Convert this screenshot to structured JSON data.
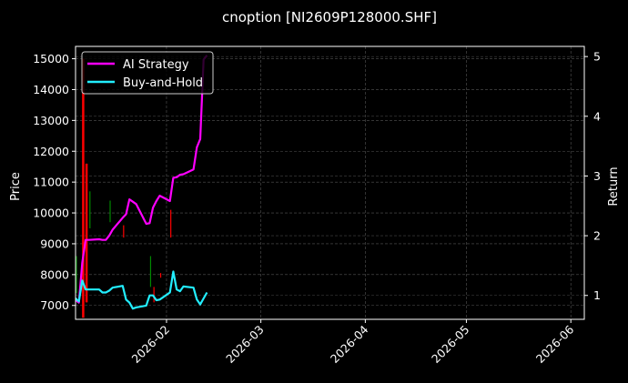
{
  "chart_data": {
    "type": "line",
    "title": "cnoption [NI2609P128000.SHF]",
    "xlabel": "",
    "ylabel": "Price",
    "y2label": "Return",
    "x_ticks": [
      "2026-02",
      "2026-03",
      "2026-04",
      "2026-05",
      "2026-06"
    ],
    "y_ticks": [
      7000,
      8000,
      9000,
      10000,
      11000,
      12000,
      13000,
      14000,
      15000
    ],
    "y2_ticks": [
      1,
      2,
      3,
      4,
      5
    ],
    "ylim": [
      6550,
      15400
    ],
    "y2lim": [
      0.6,
      5.17
    ],
    "xlim": [
      "2026-01-05",
      "2026-06-05"
    ],
    "grid": true,
    "legend_position": "upper left",
    "legend": [
      {
        "name": "AI Strategy",
        "color": "#ff00ff"
      },
      {
        "name": "Buy-and-Hold",
        "color": "#22eeff"
      }
    ],
    "series": [
      {
        "name": "AI Strategy",
        "axis": "return",
        "color": "#ff00ff",
        "x": [
          "2026-01-05",
          "2026-01-06",
          "2026-01-07",
          "2026-01-08",
          "2026-01-09",
          "2026-01-12",
          "2026-01-13",
          "2026-01-14",
          "2026-01-15",
          "2026-01-16",
          "2026-01-19",
          "2026-01-20",
          "2026-01-21",
          "2026-01-22",
          "2026-01-23",
          "2026-01-26",
          "2026-01-27",
          "2026-01-28",
          "2026-01-29",
          "2026-01-30",
          "2026-02-02",
          "2026-02-03",
          "2026-02-04",
          "2026-02-05",
          "2026-02-06",
          "2026-02-09",
          "2026-02-10",
          "2026-02-11",
          "2026-02-12",
          "2026-02-13"
        ],
        "values": [
          0.92,
          0.88,
          1.55,
          1.93,
          1.93,
          1.94,
          1.93,
          1.93,
          2.0,
          2.1,
          2.3,
          2.36,
          2.61,
          2.57,
          2.53,
          2.2,
          2.21,
          2.47,
          2.58,
          2.67,
          2.58,
          2.97,
          2.98,
          3.02,
          3.03,
          3.11,
          3.48,
          3.62,
          4.95,
          5.02
        ]
      },
      {
        "name": "Buy-and-Hold",
        "axis": "return",
        "color": "#22eeff",
        "x": [
          "2026-01-05",
          "2026-01-06",
          "2026-01-07",
          "2026-01-08",
          "2026-01-09",
          "2026-01-12",
          "2026-01-13",
          "2026-01-14",
          "2026-01-15",
          "2026-01-16",
          "2026-01-19",
          "2026-01-20",
          "2026-01-21",
          "2026-01-22",
          "2026-01-23",
          "2026-01-26",
          "2026-01-27",
          "2026-01-28",
          "2026-01-29",
          "2026-01-30",
          "2026-02-02",
          "2026-02-03",
          "2026-02-04",
          "2026-02-05",
          "2026-02-06",
          "2026-02-09",
          "2026-02-10",
          "2026-02-11",
          "2026-02-12",
          "2026-02-13"
        ],
        "values": [
          0.95,
          0.9,
          1.25,
          1.1,
          1.1,
          1.1,
          1.05,
          1.05,
          1.08,
          1.13,
          1.16,
          0.93,
          0.88,
          0.78,
          0.8,
          0.83,
          1.0,
          1.0,
          0.92,
          0.93,
          1.05,
          1.4,
          1.1,
          1.07,
          1.15,
          1.13,
          0.93,
          0.85,
          0.95,
          1.05
        ]
      }
    ],
    "price_ohlc_marks": [
      {
        "date": "2026-01-05",
        "low": 7400,
        "high": 8600,
        "color": "#008800"
      },
      {
        "date": "2026-01-07",
        "low": 6600,
        "high": 15000,
        "color": "#ff0000"
      },
      {
        "date": "2026-01-08",
        "low": 7100,
        "high": 11600,
        "color": "#ff0000"
      },
      {
        "date": "2026-01-09",
        "low": 9500,
        "high": 10700,
        "color": "#008800"
      },
      {
        "date": "2026-01-15",
        "low": 9700,
        "high": 10400,
        "color": "#008800"
      },
      {
        "date": "2026-01-19",
        "low": 9200,
        "high": 9600,
        "color": "#ff0000"
      },
      {
        "date": "2026-01-27",
        "low": 7600,
        "high": 8600,
        "color": "#008800"
      },
      {
        "date": "2026-01-28",
        "low": 7100,
        "high": 7600,
        "color": "#ff0000"
      },
      {
        "date": "2026-02-02",
        "low": 9200,
        "high": 10100,
        "color": "#ff0000"
      },
      {
        "date": "2026-01-30",
        "low": 7900,
        "high": 8050,
        "color": "#ff0000"
      }
    ]
  }
}
